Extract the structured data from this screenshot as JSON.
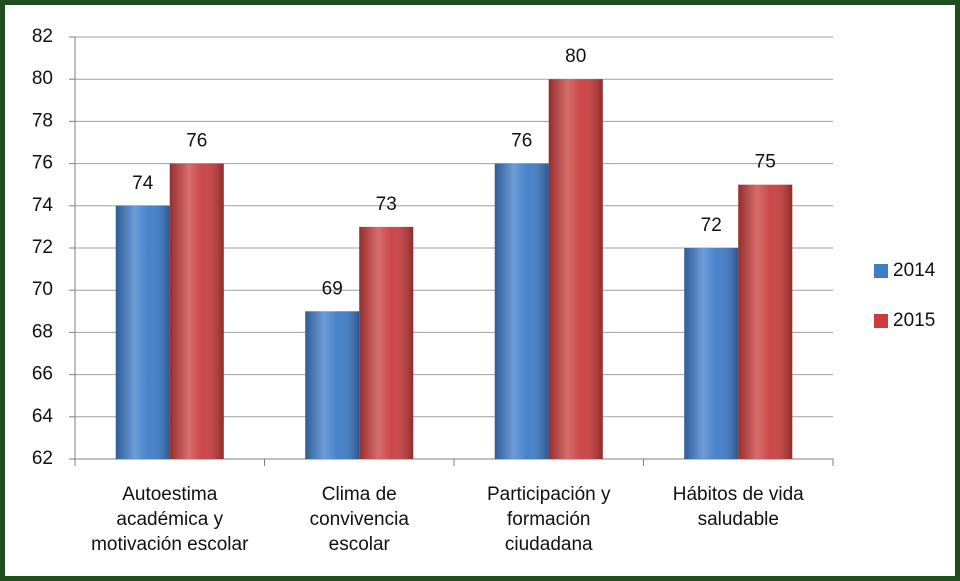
{
  "chart_data": {
    "type": "bar",
    "categories": [
      [
        "Autoestima",
        "académica y",
        "motivación escolar"
      ],
      [
        "Clima de",
        "convivencia",
        "escolar"
      ],
      [
        "Participación y",
        "formación",
        "ciudadana"
      ],
      [
        "Hábitos de vida",
        "saludable"
      ]
    ],
    "series": [
      {
        "name": "2014",
        "color": "#3d7cc9",
        "values": [
          74,
          69,
          76,
          72
        ]
      },
      {
        "name": "2015",
        "color": "#c93d3d",
        "values": [
          76,
          73,
          80,
          75
        ]
      }
    ],
    "ylim": [
      62,
      82
    ],
    "yticks": [
      62,
      64,
      66,
      68,
      70,
      72,
      74,
      76,
      78,
      80,
      82
    ],
    "grid": true,
    "legend": "right"
  }
}
